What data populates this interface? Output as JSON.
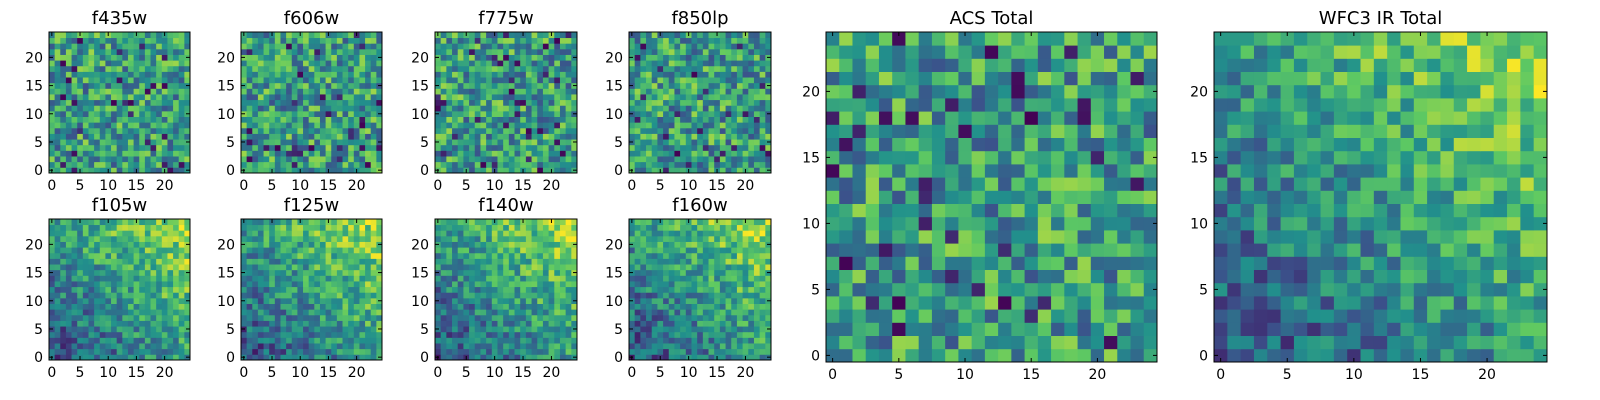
{
  "chart_data": [
    {
      "type": "heatmap",
      "title": "f435w",
      "ylim": [
        0,
        24
      ],
      "xlim": [
        0,
        24
      ],
      "xticks": [
        "0",
        "5",
        "10",
        "15",
        "20"
      ],
      "yticks": [
        "0",
        "5",
        "10",
        "15",
        "20"
      ],
      "pattern": "noise",
      "colormap": "viridis",
      "grid": false
    },
    {
      "type": "heatmap",
      "title": "f606w",
      "ylim": [
        0,
        24
      ],
      "xlim": [
        0,
        24
      ],
      "xticks": [
        "0",
        "5",
        "10",
        "15",
        "20"
      ],
      "yticks": [
        "0",
        "5",
        "10",
        "15",
        "20"
      ],
      "pattern": "noise",
      "colormap": "viridis",
      "grid": false
    },
    {
      "type": "heatmap",
      "title": "f775w",
      "ylim": [
        0,
        24
      ],
      "xlim": [
        0,
        24
      ],
      "xticks": [
        "0",
        "5",
        "10",
        "15",
        "20"
      ],
      "yticks": [
        "0",
        "5",
        "10",
        "15",
        "20"
      ],
      "pattern": "noise",
      "colormap": "viridis",
      "grid": false
    },
    {
      "type": "heatmap",
      "title": "f850lp",
      "ylim": [
        0,
        24
      ],
      "xlim": [
        0,
        24
      ],
      "xticks": [
        "0",
        "5",
        "10",
        "15",
        "20"
      ],
      "yticks": [
        "0",
        "5",
        "10",
        "15",
        "20"
      ],
      "pattern": "noise",
      "colormap": "viridis",
      "grid": false
    },
    {
      "type": "heatmap",
      "title": "f105w",
      "ylim": [
        0,
        24
      ],
      "xlim": [
        0,
        24
      ],
      "xticks": [
        "0",
        "5",
        "10",
        "15",
        "20"
      ],
      "yticks": [
        "0",
        "5",
        "10",
        "15",
        "20"
      ],
      "pattern": "gradient",
      "colormap": "viridis",
      "grid": false
    },
    {
      "type": "heatmap",
      "title": "f125w",
      "ylim": [
        0,
        24
      ],
      "xlim": [
        0,
        24
      ],
      "xticks": [
        "0",
        "5",
        "10",
        "15",
        "20"
      ],
      "yticks": [
        "0",
        "5",
        "10",
        "15",
        "20"
      ],
      "pattern": "gradient",
      "colormap": "viridis",
      "grid": false
    },
    {
      "type": "heatmap",
      "title": "f140w",
      "ylim": [
        0,
        24
      ],
      "xlim": [
        0,
        24
      ],
      "xticks": [
        "0",
        "5",
        "10",
        "15",
        "20"
      ],
      "yticks": [
        "0",
        "5",
        "10",
        "15",
        "20"
      ],
      "pattern": "gradient",
      "colormap": "viridis",
      "grid": false
    },
    {
      "type": "heatmap",
      "title": "f160w",
      "ylim": [
        0,
        24
      ],
      "xlim": [
        0,
        24
      ],
      "xticks": [
        "0",
        "5",
        "10",
        "15",
        "20"
      ],
      "yticks": [
        "0",
        "5",
        "10",
        "15",
        "20"
      ],
      "pattern": "gradient",
      "colormap": "viridis",
      "grid": false
    },
    {
      "type": "heatmap",
      "title": "ACS Total",
      "ylim": [
        0,
        24
      ],
      "xlim": [
        0,
        24
      ],
      "xticks": [
        "0",
        "5",
        "10",
        "15",
        "20"
      ],
      "yticks": [
        "0",
        "5",
        "10",
        "15",
        "20"
      ],
      "pattern": "noise",
      "colormap": "viridis",
      "grid": false
    },
    {
      "type": "heatmap",
      "title": "WFC3 IR Total",
      "ylim": [
        0,
        24
      ],
      "xlim": [
        0,
        24
      ],
      "xticks": [
        "0",
        "5",
        "10",
        "15",
        "20"
      ],
      "yticks": [
        "0",
        "5",
        "10",
        "15",
        "20"
      ],
      "pattern": "gradient",
      "colormap": "viridis",
      "grid": false
    }
  ],
  "colors": {
    "viridis": [
      "#440154",
      "#3b528b",
      "#21918c",
      "#5ec962",
      "#fde725"
    ],
    "axis_frame": "#000000",
    "background": "#ffffff"
  }
}
